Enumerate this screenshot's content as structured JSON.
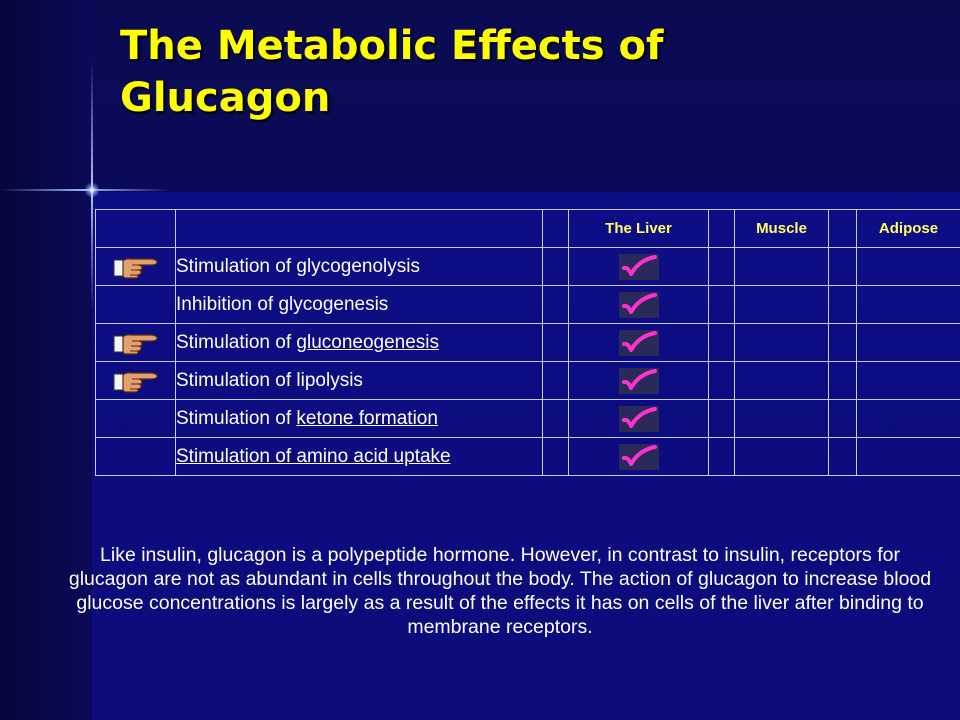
{
  "title": "The Metabolic Effects of Glucagon",
  "table": {
    "headers": [
      "",
      "",
      "",
      "The Liver",
      "",
      "Muscle",
      "",
      "Adipose"
    ],
    "rows": [
      {
        "pointer": true,
        "label": "Stimulation of glycogenolysis",
        "underlined": "",
        "liver": true,
        "muscle": false,
        "adipose": false
      },
      {
        "pointer": false,
        "label": "Inhibition of glycogenesis",
        "underlined": "",
        "liver": true,
        "muscle": false,
        "adipose": false
      },
      {
        "pointer": true,
        "label": "Stimulation of ",
        "underlined": "gluconeogenesis",
        "liver": true,
        "muscle": false,
        "adipose": false
      },
      {
        "pointer": true,
        "label": "Stimulation of lipolysis",
        "underlined": "",
        "liver": true,
        "muscle": false,
        "adipose": false
      },
      {
        "pointer": false,
        "label": "Stimulation of ",
        "underlined": "ketone formation",
        "liver": true,
        "muscle": false,
        "adipose": false
      },
      {
        "pointer": false,
        "label": "",
        "underlined": "Stimulation of amino acid uptake",
        "liver": true,
        "muscle": false,
        "adipose": false
      }
    ]
  },
  "paragraph": "Like insulin, glucagon is a polypeptide hormone. However, in contrast to insulin, receptors for glucagon are not as abundant in cells throughout the body. The action of glucagon to increase blood glucose concentrations is largely as a result of the effects it has on cells of the liver after binding to membrane receptors.",
  "icons": {
    "pointer": "pointing-hand-icon",
    "check": "checkmark-icon"
  },
  "colors": {
    "title": "#ffff00",
    "header": "#ffff66",
    "check": "#ff33cc"
  }
}
